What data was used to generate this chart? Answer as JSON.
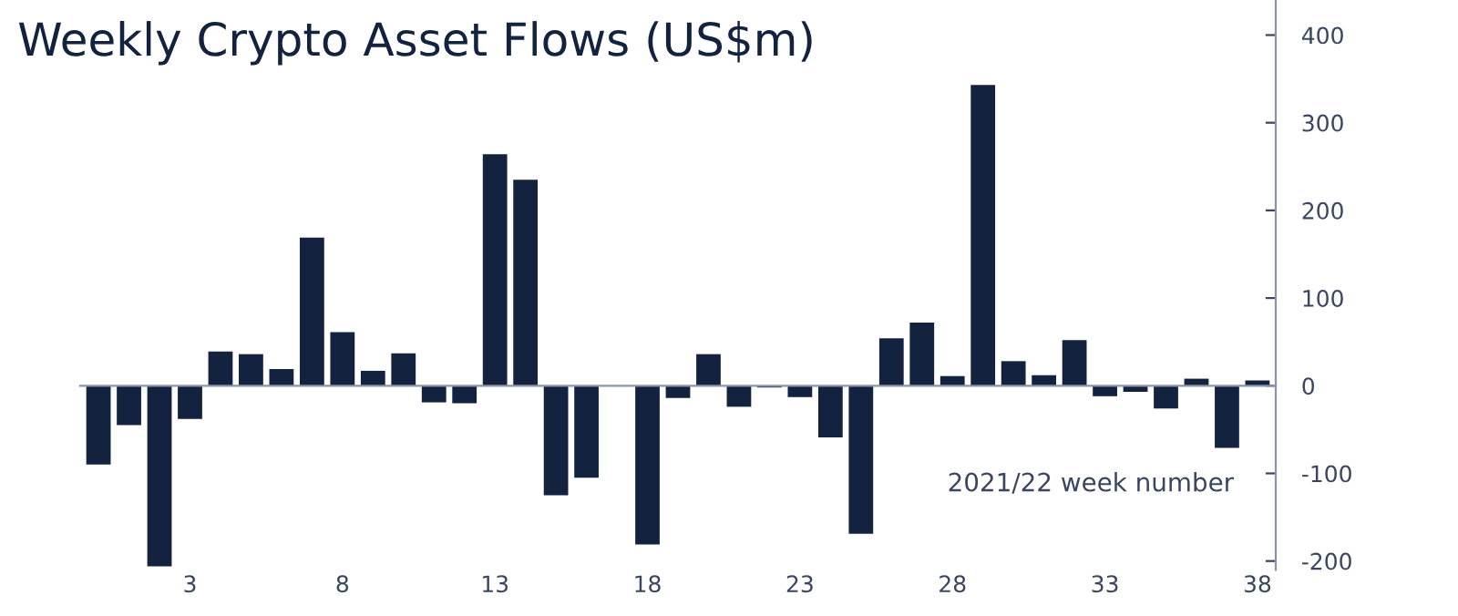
{
  "chart_data": {
    "type": "bar",
    "title": "Weekly Crypto Asset Flows (US$m)",
    "categories": [
      null,
      null,
      null,
      "3",
      null,
      null,
      null,
      null,
      "8",
      null,
      null,
      null,
      null,
      "13",
      null,
      null,
      null,
      null,
      "18",
      null,
      null,
      null,
      null,
      "23",
      null,
      null,
      null,
      null,
      "28",
      null,
      null,
      null,
      null,
      "33",
      null,
      null,
      null,
      null,
      "38"
    ],
    "values": [
      -90,
      -45,
      -206,
      -38,
      39,
      36,
      19,
      169,
      61,
      17,
      37,
      -19,
      -20,
      264,
      235,
      -125,
      -105,
      null,
      -181,
      -14,
      36,
      -24,
      -2,
      -13,
      -59,
      -169,
      54,
      72,
      11,
      343,
      28,
      12,
      52,
      -12,
      -7,
      -26,
      8,
      -71,
      6
    ],
    "color": "#13223f",
    "ylim": [
      -210,
      440
    ],
    "yticks": [
      {
        "value": -200,
        "label": "-200"
      },
      {
        "value": -100,
        "label": "-100"
      },
      0,
      100,
      200,
      300,
      400
    ],
    "annotations": [
      "2021/22 week number"
    ],
    "legend": false
  }
}
